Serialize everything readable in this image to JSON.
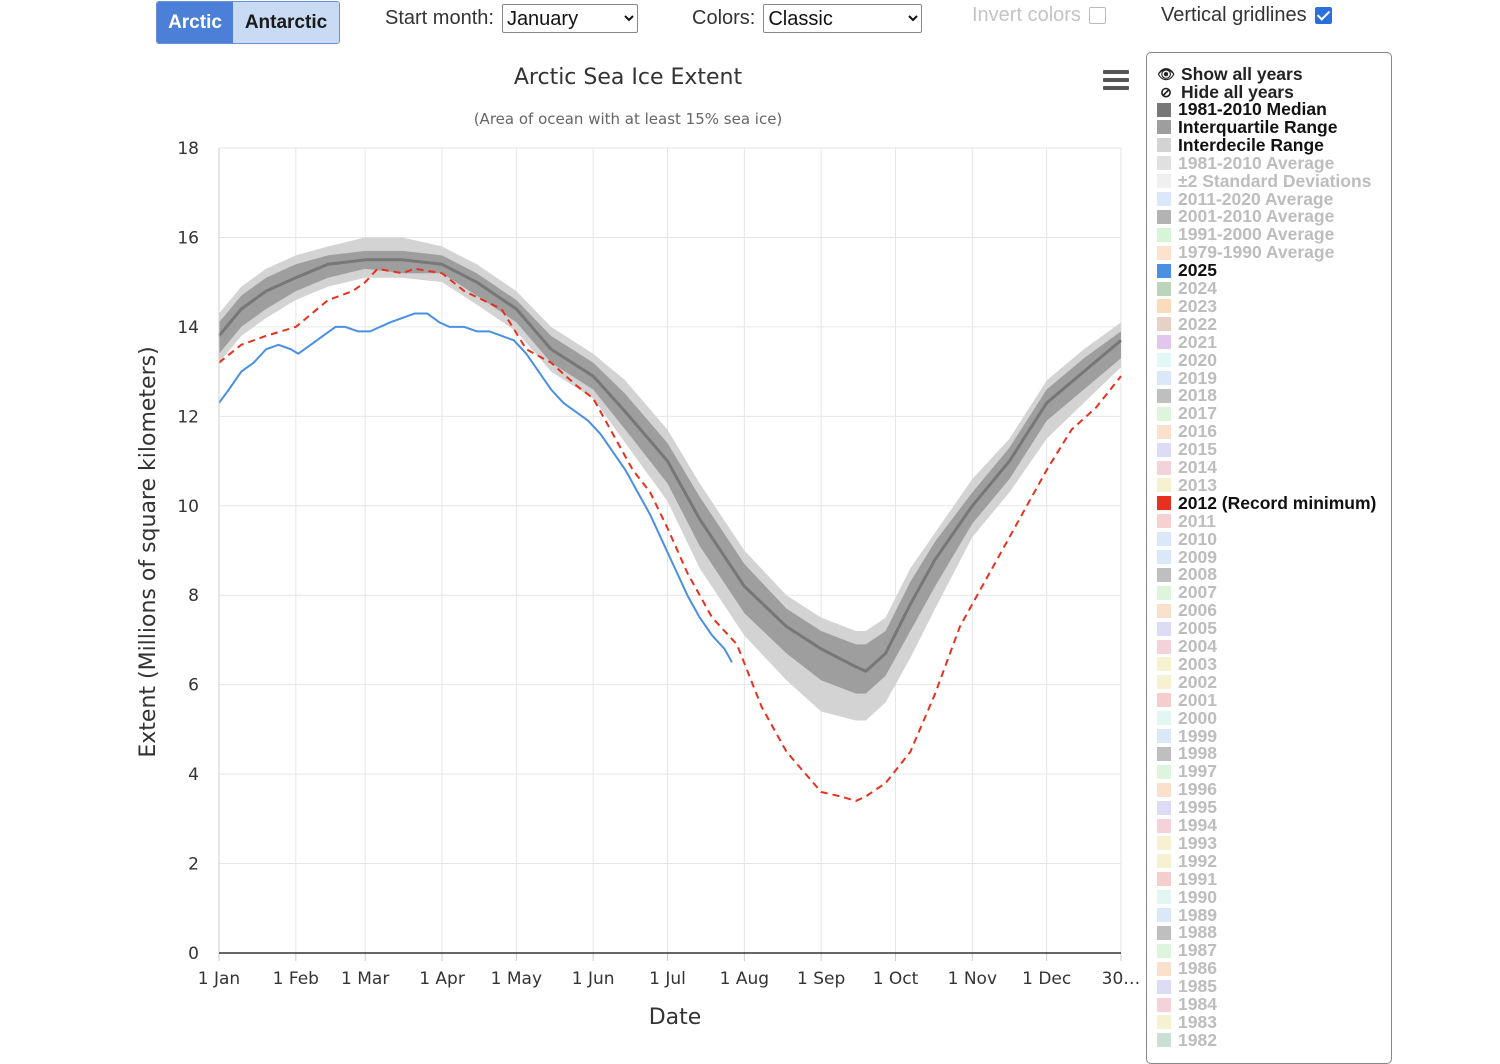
{
  "hemisphere": {
    "active": "Arctic",
    "inactive": "Antarctic"
  },
  "controls": {
    "start_month_label": "Start month:",
    "start_month_value": "January",
    "colors_label": "Colors:",
    "colors_value": "Classic",
    "invert_label": "Invert colors",
    "invert_checked": false,
    "vgrid_label": "Vertical gridlines",
    "vgrid_checked": true
  },
  "menu_icon": "hamburger-icon",
  "legend": {
    "show_all": "Show all years",
    "hide_all": "Hide all years",
    "items": [
      {
        "label": "1981-2010 Median",
        "color": "#777777",
        "active": true
      },
      {
        "label": "Interquartile Range",
        "color": "#9e9e9e",
        "active": true
      },
      {
        "label": "Interdecile Range",
        "color": "#d3d3d3",
        "active": true
      },
      {
        "label": "1981-2010 Average",
        "color": "#d5d5d5",
        "active": false
      },
      {
        "label": "±2 Standard Deviations",
        "color": "#ebebeb",
        "active": false
      },
      {
        "label": "2011-2020 Average",
        "color": "#cfe0f7",
        "active": false
      },
      {
        "label": "2001-2010 Average",
        "color": "#999999",
        "active": false
      },
      {
        "label": "1991-2000 Average",
        "color": "#c8f0c8",
        "active": false
      },
      {
        "label": "1979-1990 Average",
        "color": "#fad9bf",
        "active": false
      },
      {
        "label": "2025",
        "color": "#4a90e2",
        "active": true
      },
      {
        "label": "2024",
        "color": "#a6c6a6",
        "active": false
      },
      {
        "label": "2023",
        "color": "#f9cfa6",
        "active": false
      },
      {
        "label": "2022",
        "color": "#e1c0b1",
        "active": false
      },
      {
        "label": "2021",
        "color": "#d8b3e6",
        "active": false
      },
      {
        "label": "2020",
        "color": "#d8f4f4",
        "active": false
      },
      {
        "label": "2019",
        "color": "#cfe0f7",
        "active": false
      },
      {
        "label": "2018",
        "color": "#aaaaaa",
        "active": false
      },
      {
        "label": "2017",
        "color": "#d2f2d2",
        "active": false
      },
      {
        "label": "2016",
        "color": "#f7d7bd",
        "active": false
      },
      {
        "label": "2015",
        "color": "#d2cff2",
        "active": false
      },
      {
        "label": "2014",
        "color": "#f2c2cc",
        "active": false
      },
      {
        "label": "2013",
        "color": "#f2ecc2",
        "active": false
      },
      {
        "label": "2012 (Record minimum)",
        "color": "#e8301f",
        "active": true
      },
      {
        "label": "2011",
        "color": "#f2c2c2",
        "active": false
      },
      {
        "label": "2010",
        "color": "#cfe0f7",
        "active": false
      },
      {
        "label": "2009",
        "color": "#cfe0f7",
        "active": false
      },
      {
        "label": "2008",
        "color": "#aaaaaa",
        "active": false
      },
      {
        "label": "2007",
        "color": "#d2f2d2",
        "active": false
      },
      {
        "label": "2006",
        "color": "#f7d7bd",
        "active": false
      },
      {
        "label": "2005",
        "color": "#d2cff2",
        "active": false
      },
      {
        "label": "2004",
        "color": "#f2c2cc",
        "active": false
      },
      {
        "label": "2003",
        "color": "#f2ecc2",
        "active": false
      },
      {
        "label": "2002",
        "color": "#f2ecc2",
        "active": false
      },
      {
        "label": "2001",
        "color": "#f2bcbc",
        "active": false
      },
      {
        "label": "2000",
        "color": "#d8f4f0",
        "active": false
      },
      {
        "label": "1999",
        "color": "#cfe0f7",
        "active": false
      },
      {
        "label": "1998",
        "color": "#aaaaaa",
        "active": false
      },
      {
        "label": "1997",
        "color": "#d2f2d2",
        "active": false
      },
      {
        "label": "1996",
        "color": "#f7d7bd",
        "active": false
      },
      {
        "label": "1995",
        "color": "#d2cff2",
        "active": false
      },
      {
        "label": "1994",
        "color": "#f2c2cc",
        "active": false
      },
      {
        "label": "1993",
        "color": "#f2ecc2",
        "active": false
      },
      {
        "label": "1992",
        "color": "#f2ecc2",
        "active": false
      },
      {
        "label": "1991",
        "color": "#f2bcbc",
        "active": false
      },
      {
        "label": "1990",
        "color": "#d8f4f0",
        "active": false
      },
      {
        "label": "1989",
        "color": "#cfe0f7",
        "active": false
      },
      {
        "label": "1988",
        "color": "#aaaaaa",
        "active": false
      },
      {
        "label": "1987",
        "color": "#d2f2d2",
        "active": false
      },
      {
        "label": "1986",
        "color": "#f7d7bd",
        "active": false
      },
      {
        "label": "1985",
        "color": "#d2cff2",
        "active": false
      },
      {
        "label": "1984",
        "color": "#f2c2cc",
        "active": false
      },
      {
        "label": "1983",
        "color": "#f2ecc2",
        "active": false
      },
      {
        "label": "1982",
        "color": "#b8d6c8",
        "active": false
      }
    ]
  },
  "chart_data": {
    "type": "line",
    "title": "Arctic Sea Ice Extent",
    "subtitle": "(Area of ocean with at least 15% sea ice)",
    "xlabel": "Date",
    "ylabel": "Extent (Millions of square kilometers)",
    "ylim": [
      0,
      18
    ],
    "yticks": [
      0,
      2,
      4,
      6,
      8,
      10,
      12,
      14,
      16,
      18
    ],
    "xlim": [
      1,
      365
    ],
    "xticks": [
      {
        "day": 1,
        "label": "1 Jan"
      },
      {
        "day": 32,
        "label": "1 Feb"
      },
      {
        "day": 60,
        "label": "1 Mar"
      },
      {
        "day": 91,
        "label": "1 Apr"
      },
      {
        "day": 121,
        "label": "1 May"
      },
      {
        "day": 152,
        "label": "1 Jun"
      },
      {
        "day": 182,
        "label": "1 Jul"
      },
      {
        "day": 213,
        "label": "1 Aug"
      },
      {
        "day": 244,
        "label": "1 Sep"
      },
      {
        "day": 274,
        "label": "1 Oct"
      },
      {
        "day": 305,
        "label": "1 Nov"
      },
      {
        "day": 335,
        "label": "1 Dec"
      },
      {
        "day": 365,
        "label": "30…"
      }
    ],
    "vertical_gridlines": true,
    "legend_position": "right",
    "series": [
      {
        "name": "1981-2010 Median",
        "style": "line",
        "color": "#777777",
        "x": [
          1,
          10,
          20,
          32,
          45,
          60,
          75,
          91,
          105,
          121,
          135,
          152,
          165,
          182,
          195,
          213,
          230,
          244,
          258,
          262,
          270,
          280,
          290,
          305,
          320,
          335,
          350,
          365
        ],
        "y": [
          13.8,
          14.4,
          14.8,
          15.1,
          15.4,
          15.5,
          15.5,
          15.4,
          15.0,
          14.4,
          13.5,
          12.9,
          12.1,
          11.0,
          9.7,
          8.2,
          7.3,
          6.8,
          6.4,
          6.3,
          6.7,
          7.8,
          8.8,
          10.0,
          11.0,
          12.3,
          13.0,
          13.7
        ]
      },
      {
        "name": "Interquartile Range",
        "style": "band",
        "color": "#9e9e9e",
        "x": [
          1,
          10,
          20,
          32,
          45,
          60,
          75,
          91,
          105,
          121,
          135,
          152,
          165,
          182,
          195,
          213,
          230,
          244,
          258,
          262,
          270,
          280,
          290,
          305,
          320,
          335,
          350,
          365
        ],
        "lower": [
          13.4,
          14.0,
          14.4,
          14.8,
          15.1,
          15.3,
          15.2,
          15.2,
          14.7,
          14.1,
          13.2,
          12.6,
          11.7,
          10.5,
          9.1,
          7.6,
          6.7,
          6.1,
          5.8,
          5.8,
          6.2,
          7.2,
          8.2,
          9.6,
          10.6,
          11.9,
          12.6,
          13.3
        ],
        "upper": [
          14.1,
          14.7,
          15.1,
          15.4,
          15.6,
          15.7,
          15.7,
          15.6,
          15.2,
          14.6,
          13.8,
          13.2,
          12.5,
          11.4,
          10.2,
          8.7,
          7.7,
          7.2,
          6.9,
          6.9,
          7.2,
          8.3,
          9.2,
          10.3,
          11.3,
          12.6,
          13.3,
          13.9
        ]
      },
      {
        "name": "Interdecile Range",
        "style": "band",
        "color": "#d3d3d3",
        "x": [
          1,
          10,
          20,
          32,
          45,
          60,
          75,
          91,
          105,
          121,
          135,
          152,
          165,
          182,
          195,
          213,
          230,
          244,
          258,
          262,
          270,
          280,
          290,
          305,
          320,
          335,
          350,
          365
        ],
        "lower": [
          13.2,
          13.8,
          14.2,
          14.6,
          14.9,
          15.1,
          15.1,
          15.0,
          14.5,
          13.9,
          13.0,
          12.4,
          11.4,
          10.1,
          8.6,
          7.1,
          6.1,
          5.4,
          5.2,
          5.2,
          5.6,
          6.6,
          7.7,
          9.3,
          10.3,
          11.5,
          12.3,
          13.1
        ],
        "upper": [
          14.3,
          14.9,
          15.3,
          15.6,
          15.8,
          16.0,
          16.0,
          15.8,
          15.4,
          14.8,
          14.0,
          13.4,
          12.8,
          11.7,
          10.5,
          9.0,
          8.0,
          7.5,
          7.2,
          7.2,
          7.5,
          8.6,
          9.4,
          10.6,
          11.5,
          12.8,
          13.5,
          14.1
        ]
      },
      {
        "name": "2012 (Record minimum)",
        "style": "dashed",
        "color": "#e8301f",
        "x": [
          1,
          10,
          20,
          32,
          45,
          55,
          60,
          65,
          75,
          80,
          91,
          100,
          115,
          125,
          135,
          145,
          152,
          160,
          168,
          175,
          182,
          190,
          200,
          210,
          220,
          230,
          244,
          252,
          258,
          262,
          270,
          280,
          290,
          300,
          305,
          315,
          325,
          335,
          345,
          355,
          365
        ],
        "y": [
          13.2,
          13.6,
          13.8,
          14.0,
          14.6,
          14.8,
          15.0,
          15.3,
          15.2,
          15.3,
          15.2,
          14.8,
          14.4,
          13.5,
          13.2,
          12.7,
          12.4,
          11.6,
          10.8,
          10.3,
          9.5,
          8.5,
          7.5,
          6.9,
          5.5,
          4.5,
          3.6,
          3.5,
          3.4,
          3.5,
          3.8,
          4.5,
          5.8,
          7.3,
          7.8,
          8.8,
          9.8,
          10.8,
          11.7,
          12.2,
          12.9
        ]
      },
      {
        "name": "2025",
        "style": "line",
        "color": "#4a90e2",
        "x": [
          1,
          5,
          10,
          15,
          20,
          25,
          30,
          33,
          38,
          43,
          48,
          52,
          57,
          62,
          66,
          70,
          75,
          80,
          85,
          90,
          94,
          97,
          100,
          105,
          110,
          115,
          120,
          125,
          130,
          135,
          140,
          145,
          150,
          155,
          160,
          165,
          170,
          175,
          180,
          185,
          190,
          195,
          200,
          205,
          208
        ],
        "y": [
          12.3,
          12.6,
          13.0,
          13.2,
          13.5,
          13.6,
          13.5,
          13.4,
          13.6,
          13.8,
          14.0,
          14.0,
          13.9,
          13.9,
          14.0,
          14.1,
          14.2,
          14.3,
          14.3,
          14.1,
          14.0,
          14.0,
          14.0,
          13.9,
          13.9,
          13.8,
          13.7,
          13.4,
          13.0,
          12.6,
          12.3,
          12.1,
          11.9,
          11.6,
          11.2,
          10.8,
          10.3,
          9.8,
          9.2,
          8.6,
          8.0,
          7.5,
          7.1,
          6.8,
          6.5
        ]
      }
    ]
  }
}
